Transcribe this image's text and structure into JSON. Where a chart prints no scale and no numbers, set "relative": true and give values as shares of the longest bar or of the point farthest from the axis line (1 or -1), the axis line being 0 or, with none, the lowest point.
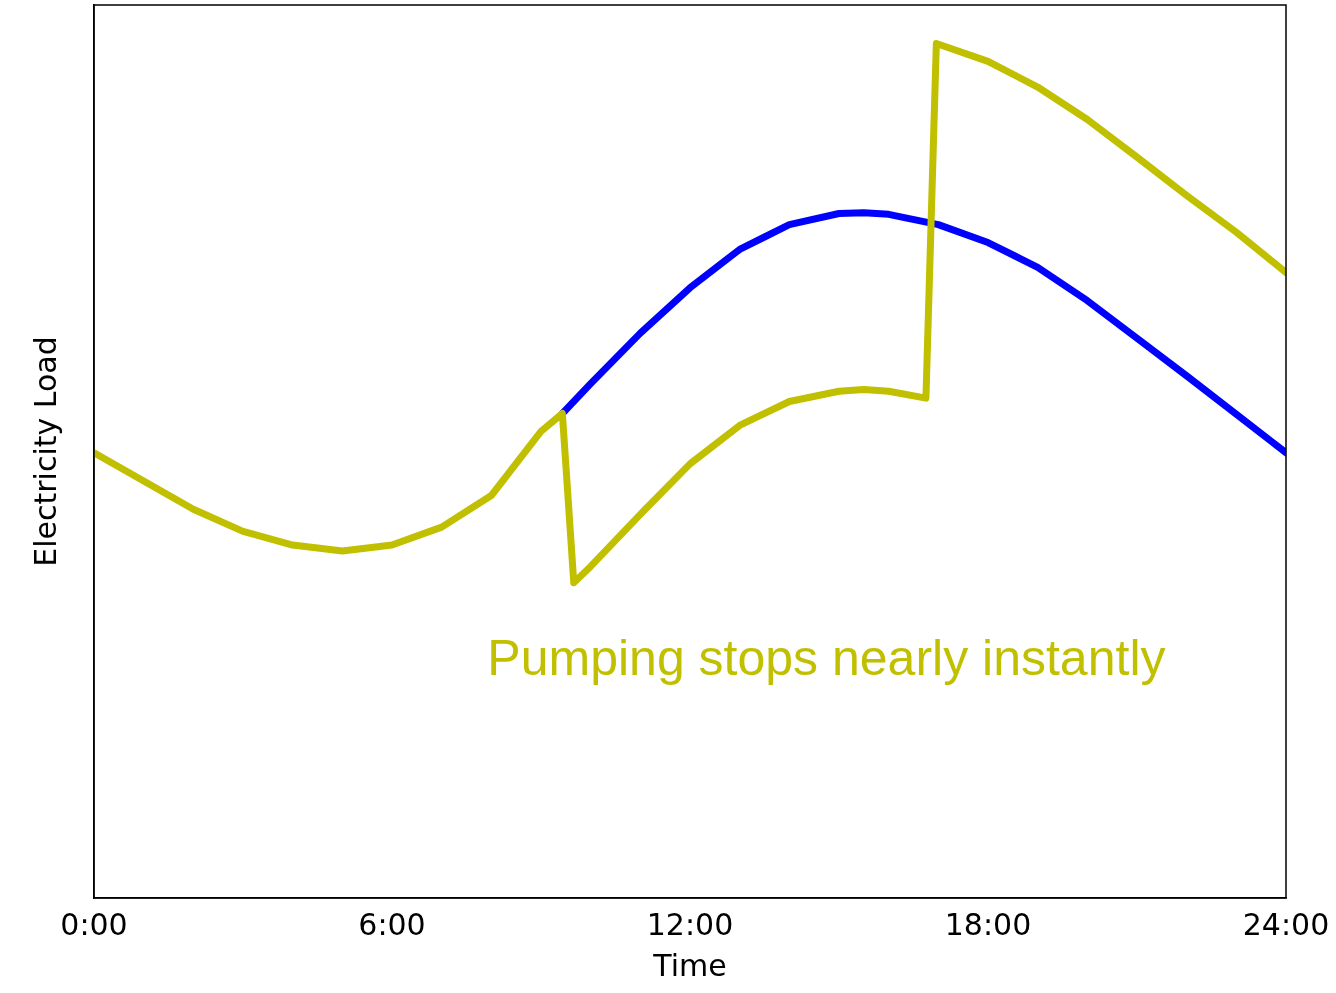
{
  "chart_data": {
    "type": "line",
    "xlabel": "Time",
    "ylabel": "Electricity Load",
    "relative": true,
    "grid": false,
    "legend": false,
    "marker": "none",
    "line_style": "solid",
    "xlim": [
      0,
      24
    ],
    "xticks": [
      {
        "value": 0,
        "label": "0:00"
      },
      {
        "value": 6,
        "label": "6:00"
      },
      {
        "value": 12,
        "label": "12:00"
      },
      {
        "value": 18,
        "label": "18:00"
      },
      {
        "value": 24,
        "label": "24:00"
      }
    ],
    "annotations": [
      "Pumping stops nearly instantly"
    ],
    "series": [
      {
        "color": "#0000ff",
        "x": [
          9.43,
          10,
          11,
          12,
          13,
          14,
          15,
          15.5,
          16,
          17,
          18,
          19,
          20,
          21,
          22,
          23,
          24
        ],
        "values": [
          0.567,
          0.602,
          0.661,
          0.714,
          0.759,
          0.788,
          0.801,
          0.802,
          0.8,
          0.788,
          0.767,
          0.738,
          0.699,
          0.655,
          0.611,
          0.566,
          0.521
        ]
      },
      {
        "color": "#c0c000",
        "x": [
          0,
          1,
          2,
          3,
          4,
          5,
          6,
          7,
          8,
          9,
          9.43,
          9.66,
          10,
          11,
          12,
          13,
          14,
          15,
          15.5,
          16,
          16.75,
          16.96,
          18,
          19,
          20,
          21,
          22,
          23,
          24
        ],
        "values": [
          0.521,
          0.488,
          0.455,
          0.429,
          0.413,
          0.406,
          0.413,
          0.434,
          0.471,
          0.546,
          0.567,
          0.369,
          0.388,
          0.449,
          0.508,
          0.553,
          0.581,
          0.593,
          0.595,
          0.593,
          0.585,
          1.0,
          0.979,
          0.949,
          0.911,
          0.867,
          0.822,
          0.779,
          0.732
        ]
      }
    ]
  }
}
